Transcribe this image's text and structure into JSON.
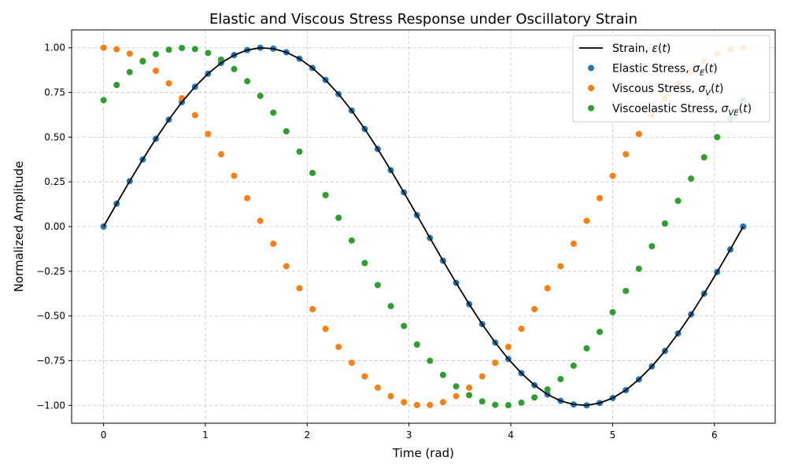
{
  "chart_data": {
    "type": "scatter",
    "title": "Elastic and Viscous Stress Response under Oscillatory Strain",
    "xlabel": "Time (rad)",
    "ylabel": "Normalized Amplitude",
    "xlim": [
      -0.314,
      6.597
    ],
    "ylim": [
      -1.1,
      1.1
    ],
    "xticks": [
      0,
      1,
      2,
      3,
      4,
      5,
      6
    ],
    "yticks": [
      -1.0,
      -0.75,
      -0.5,
      -0.25,
      0.0,
      0.25,
      0.5,
      0.75,
      1.0
    ],
    "xtick_labels": [
      "0",
      "1",
      "2",
      "3",
      "4",
      "5",
      "6"
    ],
    "ytick_labels": [
      "−1.00",
      "−0.75",
      "−0.50",
      "−0.25",
      "0.00",
      "0.25",
      "0.50",
      "0.75",
      "1.00"
    ],
    "grid": true,
    "legend_position": "top-right",
    "x": [
      0.0,
      0.128,
      0.256,
      0.385,
      0.513,
      0.641,
      0.769,
      0.898,
      1.026,
      1.154,
      1.282,
      1.411,
      1.539,
      1.667,
      1.795,
      1.924,
      2.052,
      2.18,
      2.308,
      2.437,
      2.565,
      2.693,
      2.821,
      2.95,
      3.078,
      3.206,
      3.334,
      3.463,
      3.591,
      3.719,
      3.847,
      3.976,
      4.104,
      4.232,
      4.36,
      4.489,
      4.617,
      4.745,
      4.873,
      5.001,
      5.13,
      5.258,
      5.386,
      5.514,
      5.643,
      5.771,
      5.899,
      6.027,
      6.156,
      6.283
    ],
    "series": [
      {
        "name": "Strain, ε(t)",
        "kind": "line",
        "color": "#000000",
        "values": [
          0.0,
          0.128,
          0.254,
          0.375,
          0.491,
          0.598,
          0.696,
          0.782,
          0.855,
          0.915,
          0.959,
          0.987,
          1.0,
          0.995,
          0.975,
          0.939,
          0.887,
          0.82,
          0.741,
          0.649,
          0.546,
          0.434,
          0.315,
          0.191,
          0.064,
          -0.064,
          -0.191,
          -0.315,
          -0.434,
          -0.546,
          -0.649,
          -0.741,
          -0.82,
          -0.887,
          -0.939,
          -0.975,
          -0.995,
          -1.0,
          -0.987,
          -0.959,
          -0.915,
          -0.855,
          -0.782,
          -0.696,
          -0.598,
          -0.491,
          -0.375,
          -0.254,
          -0.128,
          0.0
        ]
      },
      {
        "name": "Elastic Stress, σE(t)",
        "kind": "scatter",
        "color": "#1f77b4",
        "values": [
          0.0,
          0.128,
          0.254,
          0.375,
          0.491,
          0.598,
          0.696,
          0.782,
          0.855,
          0.915,
          0.959,
          0.987,
          1.0,
          0.995,
          0.975,
          0.939,
          0.887,
          0.82,
          0.741,
          0.649,
          0.546,
          0.434,
          0.315,
          0.191,
          0.064,
          -0.064,
          -0.191,
          -0.315,
          -0.434,
          -0.546,
          -0.649,
          -0.741,
          -0.82,
          -0.887,
          -0.939,
          -0.975,
          -0.995,
          -1.0,
          -0.987,
          -0.959,
          -0.915,
          -0.855,
          -0.782,
          -0.696,
          -0.598,
          -0.491,
          -0.375,
          -0.254,
          -0.128,
          0.0
        ]
      },
      {
        "name": "Viscous Stress, σV(t)",
        "kind": "scatter",
        "color": "#ff7f0e",
        "values": [
          1.0,
          0.992,
          0.967,
          0.927,
          0.871,
          0.801,
          0.718,
          0.623,
          0.518,
          0.404,
          0.284,
          0.159,
          0.032,
          -0.096,
          -0.222,
          -0.345,
          -0.462,
          -0.572,
          -0.673,
          -0.762,
          -0.838,
          -0.901,
          -0.949,
          -0.982,
          -0.998,
          -0.998,
          -0.982,
          -0.949,
          -0.901,
          -0.838,
          -0.762,
          -0.673,
          -0.572,
          -0.462,
          -0.345,
          -0.222,
          -0.096,
          0.032,
          0.159,
          0.284,
          0.404,
          0.518,
          0.623,
          0.718,
          0.801,
          0.871,
          0.927,
          0.967,
          0.992,
          1.0
        ]
      },
      {
        "name": "Viscoelastic Stress, σVE(t)",
        "kind": "scatter",
        "color": "#2ca02c",
        "values": [
          0.707,
          0.792,
          0.864,
          0.924,
          0.964,
          0.989,
          0.999,
          0.993,
          0.971,
          0.934,
          0.881,
          0.813,
          0.731,
          0.637,
          0.533,
          0.419,
          0.3,
          0.176,
          0.049,
          -0.078,
          -0.204,
          -0.327,
          -0.445,
          -0.556,
          -0.66,
          -0.751,
          -0.83,
          -0.894,
          -0.943,
          -0.978,
          -0.997,
          -0.999,
          -0.985,
          -0.956,
          -0.911,
          -0.853,
          -0.778,
          -0.681,
          -0.589,
          -0.479,
          -0.36,
          -0.236,
          -0.11,
          0.017,
          0.144,
          0.268,
          0.387,
          0.5,
          0.605,
          0.707
        ]
      }
    ]
  }
}
